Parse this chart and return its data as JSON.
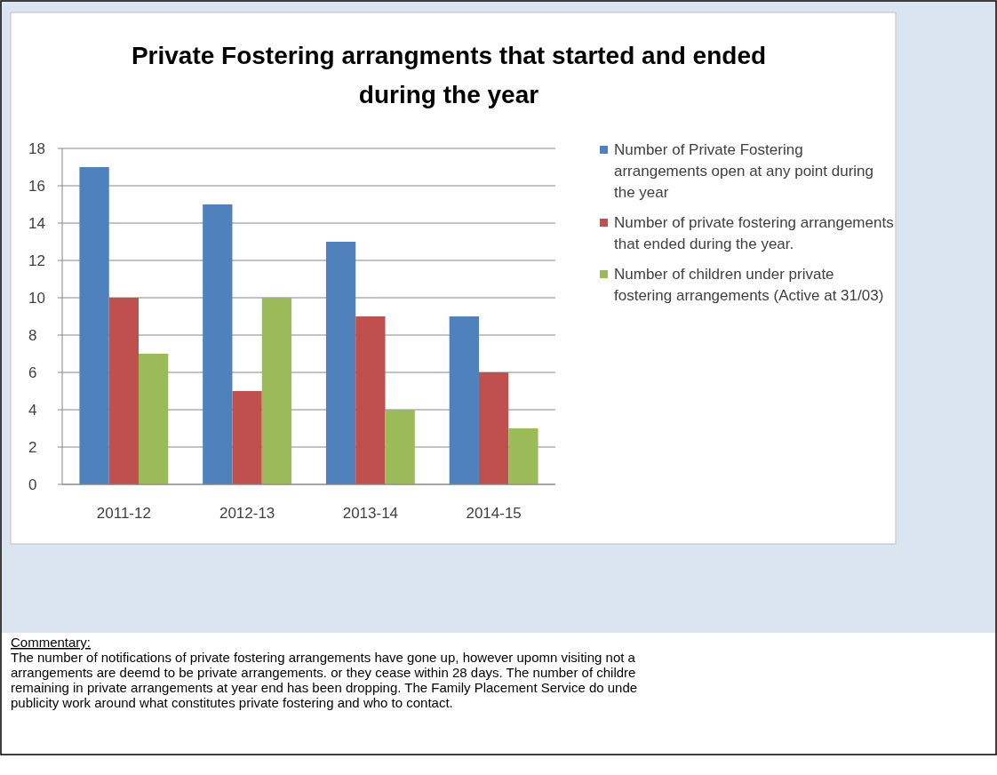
{
  "chart_data": {
    "type": "bar",
    "title": "Private Fostering arrangments that started and ended during the year",
    "categories": [
      "2011-12",
      "2012-13",
      "2013-14",
      "2014-15"
    ],
    "series": [
      {
        "name": "Number of Private Fostering arrangements open at any point during the year",
        "color": "#4f81bd",
        "values": [
          17,
          15,
          13,
          9
        ]
      },
      {
        "name": "Number of private fostering arrangements that ended during the year.",
        "color": "#c0504d",
        "values": [
          10,
          5,
          9,
          6
        ]
      },
      {
        "name": "Number of children under private fostering arrangements (Active at 31/03)",
        "color": "#9bbb59",
        "values": [
          7,
          10,
          4,
          3
        ]
      }
    ],
    "ylim": [
      0,
      18
    ],
    "yticks": [
      0,
      2,
      4,
      6,
      8,
      10,
      12,
      14,
      16,
      18
    ],
    "grid": "y",
    "legend": "right",
    "annotations": [
      "Commentary:",
      "The number of notifications of private fostering arrangements have gone up, however upomn visiting  not a",
      "arrangements are deemd to be private arrangements. or they cease within 28 days.  The number of childre",
      "remaining in private arrangements at year end has been dropping. The Family Placement Service  do unde",
      "publicity work  around what  constitutes private fostering and who to contact."
    ]
  }
}
